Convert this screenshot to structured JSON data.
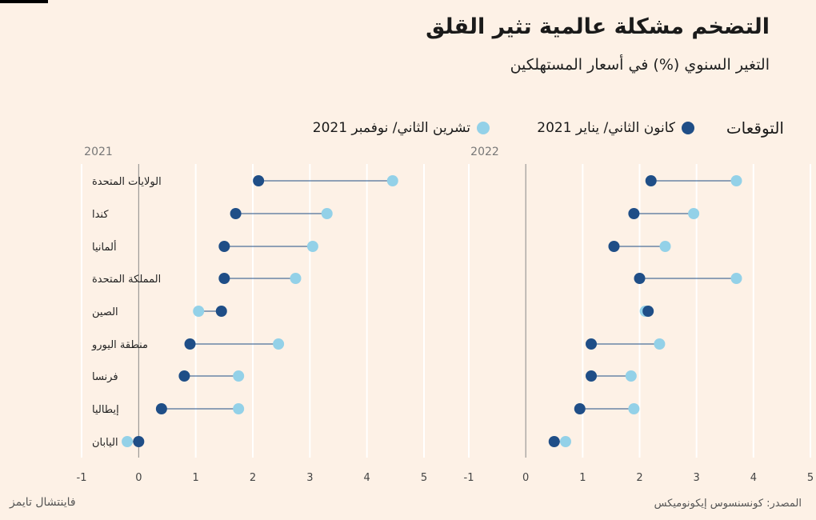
{
  "header": {
    "title": "التضخم مشكلة عالمية تثير القلق",
    "subtitle": "التغير السنوي (%) في أسعار المستهلكين"
  },
  "legend": {
    "title": "التوقعات",
    "jan_label": "كانون الثاني/ يناير 2021",
    "nov_label": "تشرين الثاني/ نوفمبر 2021"
  },
  "footer": {
    "source": "المصدر: كونسنسوس إيكونوميكس",
    "brand": "فاينتشال تايمز"
  },
  "colors": {
    "jan": "#1f4e87",
    "nov": "#93d1e8",
    "connector": "#1f4e87",
    "grid": "#ffffff",
    "zero_line": "#888888",
    "background": "#fdf1e6"
  },
  "chart_data": [
    {
      "type": "dumbbell",
      "panel_label": "2021",
      "xlim": [
        -1,
        5
      ],
      "xticks": [
        -1,
        0,
        1,
        2,
        3,
        4,
        5
      ],
      "categories": [
        "الولايات المتحدة",
        "كندا",
        "ألمانيا",
        "المملكة المتحدة",
        "الصين",
        "منطقة اليورو",
        "فرنسا",
        "إيطاليا",
        "اليابان"
      ],
      "series": [
        {
          "name": "كانون الثاني/ يناير 2021",
          "values": [
            2.1,
            1.7,
            1.5,
            1.5,
            1.45,
            0.9,
            0.8,
            0.4,
            0.0
          ]
        },
        {
          "name": "تشرين الثاني/ نوفمبر 2021",
          "values": [
            4.45,
            3.3,
            3.05,
            2.75,
            1.05,
            2.45,
            1.75,
            1.75,
            -0.2
          ]
        }
      ]
    },
    {
      "type": "dumbbell",
      "panel_label": "2022",
      "xlim": [
        -1,
        5
      ],
      "xticks": [
        -1,
        0,
        1,
        2,
        3,
        4,
        5
      ],
      "categories": [
        "الولايات المتحدة",
        "كندا",
        "ألمانيا",
        "المملكة المتحدة",
        "الصين",
        "منطقة اليورو",
        "فرنسا",
        "إيطاليا",
        "اليابان"
      ],
      "series": [
        {
          "name": "كانون الثاني/ يناير 2021",
          "values": [
            2.2,
            1.9,
            1.55,
            2.0,
            2.15,
            1.15,
            1.15,
            0.95,
            0.5
          ]
        },
        {
          "name": "تشرين الثاني/ نوفمبر 2021",
          "values": [
            3.7,
            2.95,
            2.45,
            3.7,
            2.1,
            2.35,
            1.85,
            1.9,
            0.7
          ]
        }
      ]
    }
  ]
}
